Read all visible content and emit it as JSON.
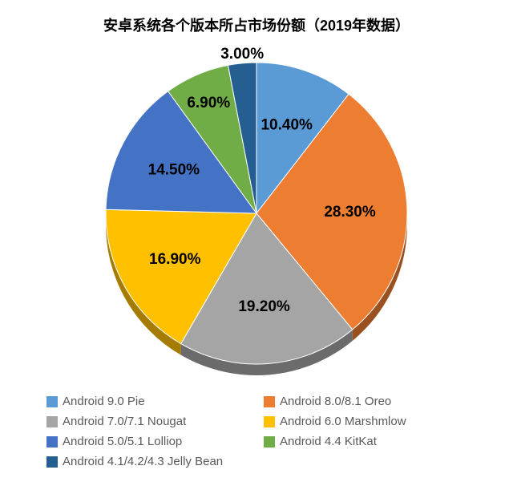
{
  "chart": {
    "type": "pie",
    "title": "安卓系统各个版本所占市场份额（2019年数据）",
    "title_fontsize": 18,
    "title_color": "#000000",
    "background_color": "#ffffff",
    "label_fontsize": 19,
    "label_fontweight": "bold",
    "label_color": "#000000",
    "legend_fontsize": 15,
    "legend_text_color": "#595959",
    "legend_swatch_size": 14,
    "pie_radius": 188,
    "pie_3d_depth": 14,
    "start_angle_deg": -90,
    "stroke_color": "#ffffff",
    "stroke_width": 1,
    "slices": [
      {
        "label": "Android 9.0 Pie",
        "value": 10.4,
        "display": "10.40%",
        "color": "#5b9bd5"
      },
      {
        "label": "Android 8.0/8.1 Oreo",
        "value": 28.3,
        "display": "28.30%",
        "color": "#ed7d31"
      },
      {
        "label": "Android 7.0/7.1 Nougat",
        "value": 19.2,
        "display": "19.20%",
        "color": "#a5a5a5"
      },
      {
        "label": "Android 6.0 Marshmlow",
        "value": 16.9,
        "display": "16.90%",
        "color": "#ffc000"
      },
      {
        "label": "Android 5.0/5.1 Lolliop",
        "value": 14.5,
        "display": "14.50%",
        "color": "#4472c4"
      },
      {
        "label": "Android 4.4 KitKat",
        "value": 6.9,
        "display": "6.90%",
        "color": "#70ad47"
      },
      {
        "label": "Android 4.1/4.2/4.3 Jelly Bean",
        "value": 3.0,
        "display": "3.00%",
        "color": "#255e91"
      }
    ]
  }
}
